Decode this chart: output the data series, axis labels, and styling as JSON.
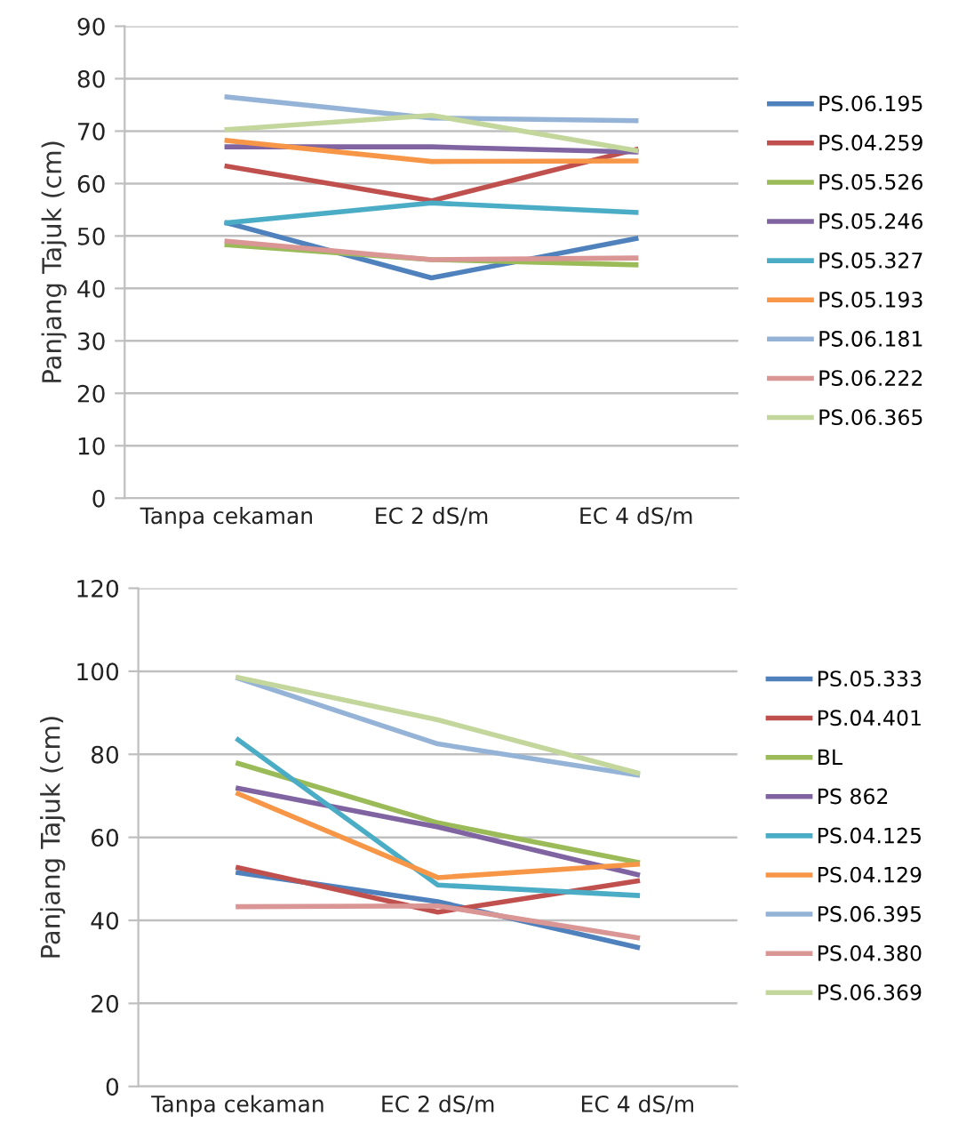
{
  "chart_data": [
    {
      "type": "line",
      "ylabel": "Panjang Tajuk (cm)",
      "categories": [
        "Tanpa cekaman",
        "EC 2 dS/m",
        "EC 4 dS/m"
      ],
      "ylim": [
        0,
        90
      ],
      "yticks": [
        0,
        10,
        20,
        30,
        40,
        50,
        60,
        70,
        80,
        90
      ],
      "grid": "y",
      "legend": "right",
      "marker": "none",
      "line_style": "solid",
      "series": [
        {
          "name": "PS.06.195",
          "color": "#4f81bd",
          "values": [
            52.5,
            42,
            49.5
          ]
        },
        {
          "name": "PS.04.259",
          "color": "#c0504d",
          "values": [
            63.3,
            56.7,
            66.5
          ]
        },
        {
          "name": "PS.05.526",
          "color": "#9bbb59",
          "values": [
            48.3,
            45.5,
            44.5
          ]
        },
        {
          "name": "PS.05.246",
          "color": "#8064a2",
          "values": [
            67,
            67,
            66
          ]
        },
        {
          "name": "PS.05.327",
          "color": "#4bacc6",
          "values": [
            52.5,
            56.3,
            54.5
          ]
        },
        {
          "name": "PS.05.193",
          "color": "#f79646",
          "values": [
            68.2,
            64.2,
            64.3
          ]
        },
        {
          "name": "PS.06.181",
          "color": "#95b3d7",
          "values": [
            76.5,
            72.5,
            72
          ]
        },
        {
          "name": "PS.06.222",
          "color": "#d99694",
          "values": [
            49,
            45.5,
            45.8
          ]
        },
        {
          "name": "PS.06.365",
          "color": "#c3d69b",
          "values": [
            70.3,
            73,
            66.3
          ]
        }
      ]
    },
    {
      "type": "line",
      "ylabel": "Panjang Tajuk (cm)",
      "categories": [
        "Tanpa cekaman",
        "EC 2 dS/m",
        "EC 4 dS/m"
      ],
      "ylim": [
        0,
        120
      ],
      "yticks": [
        0,
        20,
        40,
        60,
        80,
        100,
        120
      ],
      "grid": "y",
      "legend": "right",
      "marker": "none",
      "line_style": "solid",
      "series": [
        {
          "name": "PS.05.333",
          "color": "#4f81bd",
          "values": [
            51.5,
            44.5,
            33.5
          ]
        },
        {
          "name": "PS.04.401",
          "color": "#c0504d",
          "values": [
            52.7,
            42,
            49.5
          ]
        },
        {
          "name": "BL",
          "color": "#9bbb59",
          "values": [
            77.8,
            63.5,
            54
          ]
        },
        {
          "name": "PS 862",
          "color": "#8064a2",
          "values": [
            71.8,
            62.5,
            51
          ]
        },
        {
          "name": "PS.04.125",
          "color": "#4bacc6",
          "values": [
            83.5,
            48.5,
            46
          ]
        },
        {
          "name": "PS.04.129",
          "color": "#f79646",
          "values": [
            70.5,
            50.3,
            53.5
          ]
        },
        {
          "name": "PS.06.395",
          "color": "#95b3d7",
          "values": [
            98.3,
            82.5,
            75
          ]
        },
        {
          "name": "PS.04.380",
          "color": "#d99694",
          "values": [
            43.3,
            43.5,
            35.8
          ]
        },
        {
          "name": "PS.06.369",
          "color": "#c3d69b",
          "values": [
            98.5,
            88.3,
            75.5
          ]
        }
      ]
    }
  ]
}
